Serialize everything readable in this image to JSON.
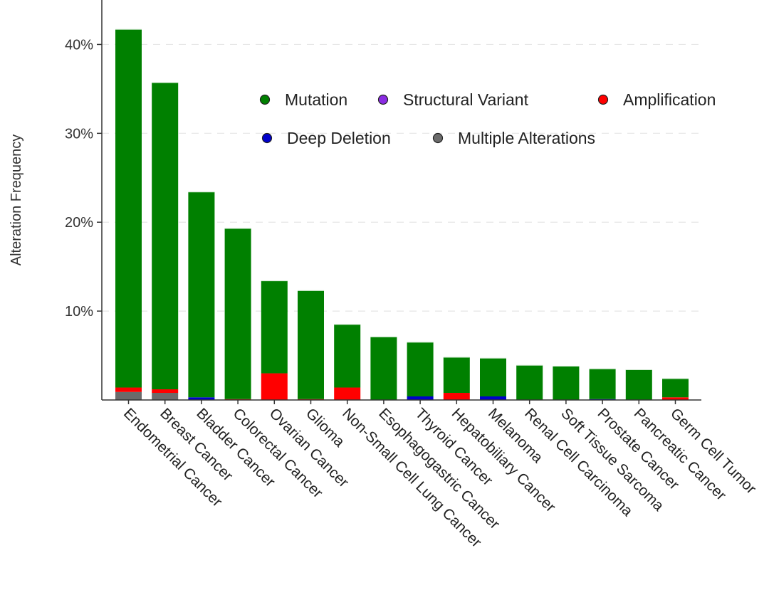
{
  "chart_data": {
    "type": "bar",
    "stacked": true,
    "ylabel": "Alteration Frequency",
    "xlabel": "",
    "ylim": [
      0,
      45
    ],
    "yticks": [
      10,
      20,
      30,
      40
    ],
    "ytick_labels": [
      "10%",
      "20%",
      "30%",
      "40%"
    ],
    "grid": true,
    "legend_position": "top-right",
    "categories": [
      "Endometrial Cancer",
      "Breast Cancer",
      "Bladder Cancer",
      "Colorectal Cancer",
      "Ovarian Cancer",
      "Glioma",
      "Non-Small Cell Lung Cancer",
      "Esophagogastric Cancer",
      "Thyroid Cancer",
      "Hepatobiliary Cancer",
      "Melanoma",
      "Renal Cell Carcinoma",
      "Soft Tissue Sarcoma",
      "Prostate Cancer",
      "Pancreatic Cancer",
      "Germ Cell Tumor"
    ],
    "series": [
      {
        "name": "Multiple Alterations",
        "color": "#6b6b6b",
        "values": [
          0.9,
          0.8,
          0.0,
          0.0,
          0.0,
          0.0,
          0.0,
          0.0,
          0.0,
          0.0,
          0.0,
          0.0,
          0.0,
          0.0,
          0.0,
          0.0
        ]
      },
      {
        "name": "Deep Deletion",
        "color": "#0000cc",
        "values": [
          0.0,
          0.0,
          0.3,
          0.0,
          0.0,
          0.0,
          0.0,
          0.0,
          0.4,
          0.0,
          0.4,
          0.0,
          0.0,
          0.1,
          0.0,
          0.0
        ]
      },
      {
        "name": "Amplification",
        "color": "#ff0000",
        "values": [
          0.5,
          0.4,
          0.0,
          0.1,
          3.0,
          0.1,
          1.4,
          0.0,
          0.0,
          0.8,
          0.0,
          0.0,
          0.0,
          0.0,
          0.0,
          0.3
        ]
      },
      {
        "name": "Structural Variant",
        "color": "#8a2be2",
        "values": [
          0.0,
          0.0,
          0.0,
          0.0,
          0.0,
          0.0,
          0.0,
          0.0,
          0.0,
          0.0,
          0.0,
          0.0,
          0.0,
          0.0,
          0.0,
          0.0
        ]
      },
      {
        "name": "Mutation",
        "color": "#008000",
        "values": [
          40.3,
          34.5,
          23.1,
          19.2,
          10.4,
          12.2,
          7.1,
          7.1,
          6.1,
          4.0,
          4.3,
          3.9,
          3.8,
          3.4,
          3.4,
          2.1
        ]
      }
    ],
    "legend": [
      {
        "name": "Mutation",
        "color": "#008000"
      },
      {
        "name": "Structural Variant",
        "color": "#8a2be2"
      },
      {
        "name": "Amplification",
        "color": "#ff0000"
      },
      {
        "name": "Deep Deletion",
        "color": "#0000cc"
      },
      {
        "name": "Multiple Alterations",
        "color": "#6b6b6b"
      }
    ],
    "totals": [
      41.7,
      35.7,
      23.4,
      19.3,
      13.4,
      12.3,
      8.5,
      7.1,
      6.5,
      4.8,
      4.7,
      3.9,
      3.8,
      3.5,
      3.4,
      2.4
    ]
  }
}
